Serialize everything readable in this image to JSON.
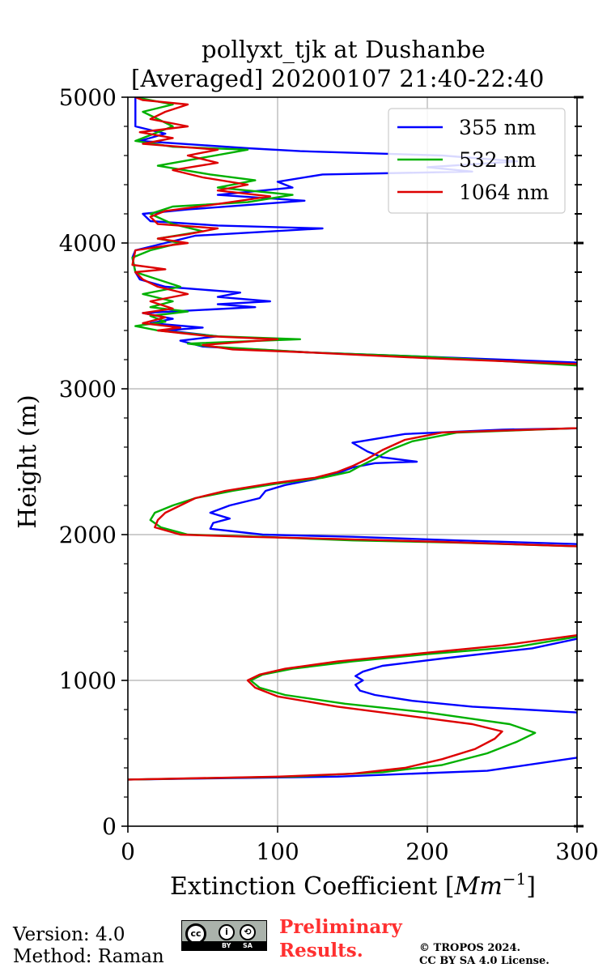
{
  "chart_data": {
    "type": "line",
    "title_line1": "pollyxt_tjk at Dushanbe",
    "title_line2": "[Averaged] 20200107 21:40-22:40",
    "xlabel_main": "Extinction Coefficient [",
    "xlabel_unit": "Mm",
    "xlabel_exp": "−1",
    "xlabel_close": "]",
    "ylabel": "Height (m)",
    "xlim": [
      0,
      300
    ],
    "ylim": [
      0,
      5000
    ],
    "xticks": [
      0,
      100,
      200,
      300
    ],
    "yticks": [
      0,
      1000,
      2000,
      3000,
      4000,
      5000
    ],
    "grid": true,
    "legend_position": "top-right",
    "series": [
      {
        "name": "355 nm",
        "color": "#0000ff",
        "points": [
          [
            0,
            320
          ],
          [
            140,
            340
          ],
          [
            240,
            380
          ],
          [
            300,
            470
          ],
          [
            305,
            600
          ],
          [
            300,
            780
          ],
          [
            230,
            820
          ],
          [
            190,
            860
          ],
          [
            165,
            900
          ],
          [
            155,
            930
          ],
          [
            152,
            970
          ],
          [
            157,
            1000
          ],
          [
            152,
            1030
          ],
          [
            157,
            1060
          ],
          [
            170,
            1100
          ],
          [
            210,
            1150
          ],
          [
            270,
            1220
          ],
          [
            300,
            1285
          ],
          [
            305,
            1400
          ],
          [
            305,
            1800
          ],
          [
            300,
            1935
          ],
          [
            220,
            1960
          ],
          [
            150,
            1985
          ],
          [
            90,
            2000
          ],
          [
            55,
            2040
          ],
          [
            57,
            2080
          ],
          [
            68,
            2110
          ],
          [
            55,
            2150
          ],
          [
            68,
            2200
          ],
          [
            88,
            2250
          ],
          [
            92,
            2300
          ],
          [
            105,
            2340
          ],
          [
            125,
            2380
          ],
          [
            140,
            2420
          ],
          [
            150,
            2460
          ],
          [
            165,
            2490
          ],
          [
            193,
            2500
          ],
          [
            170,
            2530
          ],
          [
            160,
            2570
          ],
          [
            150,
            2630
          ],
          [
            185,
            2690
          ],
          [
            250,
            2720
          ],
          [
            305,
            2730
          ],
          [
            305,
            3100
          ],
          [
            300,
            3180
          ],
          [
            200,
            3220
          ],
          [
            120,
            3250
          ],
          [
            50,
            3290
          ],
          [
            35,
            3330
          ],
          [
            60,
            3360
          ],
          [
            25,
            3400
          ],
          [
            50,
            3420
          ],
          [
            15,
            3450
          ],
          [
            30,
            3480
          ],
          [
            10,
            3520
          ],
          [
            85,
            3560
          ],
          [
            60,
            3580
          ],
          [
            95,
            3600
          ],
          [
            60,
            3630
          ],
          [
            75,
            3660
          ],
          [
            25,
            3700
          ],
          [
            8,
            3750
          ],
          [
            5,
            3800
          ],
          [
            3,
            3900
          ],
          [
            5,
            3950
          ],
          [
            25,
            4000
          ],
          [
            45,
            4050
          ],
          [
            130,
            4100
          ],
          [
            60,
            4120
          ],
          [
            15,
            4150
          ],
          [
            10,
            4200
          ],
          [
            40,
            4230
          ],
          [
            118,
            4290
          ],
          [
            60,
            4330
          ],
          [
            110,
            4380
          ],
          [
            100,
            4420
          ],
          [
            130,
            4470
          ],
          [
            230,
            4490
          ],
          [
            200,
            4520
          ],
          [
            260,
            4560
          ],
          [
            210,
            4600
          ],
          [
            115,
            4630
          ],
          [
            80,
            4650
          ],
          [
            8,
            4700
          ],
          [
            25,
            4750
          ],
          [
            5,
            4800
          ],
          [
            5,
            5000
          ]
        ]
      },
      {
        "name": "532 nm",
        "color": "#00b000",
        "points": [
          [
            0,
            320
          ],
          [
            110,
            340
          ],
          [
            170,
            370
          ],
          [
            210,
            420
          ],
          [
            240,
            500
          ],
          [
            260,
            580
          ],
          [
            272,
            640
          ],
          [
            255,
            700
          ],
          [
            200,
            780
          ],
          [
            145,
            840
          ],
          [
            105,
            900
          ],
          [
            88,
            950
          ],
          [
            82,
            1000
          ],
          [
            90,
            1040
          ],
          [
            110,
            1080
          ],
          [
            150,
            1130
          ],
          [
            200,
            1180
          ],
          [
            260,
            1230
          ],
          [
            300,
            1300
          ],
          [
            305,
            1400
          ],
          [
            305,
            1850
          ],
          [
            300,
            1920
          ],
          [
            220,
            1945
          ],
          [
            150,
            1960
          ],
          [
            90,
            1985
          ],
          [
            40,
            2000
          ],
          [
            22,
            2050
          ],
          [
            15,
            2100
          ],
          [
            18,
            2150
          ],
          [
            30,
            2200
          ],
          [
            45,
            2250
          ],
          [
            70,
            2300
          ],
          [
            100,
            2350
          ],
          [
            130,
            2390
          ],
          [
            148,
            2430
          ],
          [
            155,
            2470
          ],
          [
            165,
            2520
          ],
          [
            175,
            2580
          ],
          [
            190,
            2640
          ],
          [
            220,
            2700
          ],
          [
            300,
            2730
          ],
          [
            305,
            2800
          ],
          [
            305,
            3100
          ],
          [
            300,
            3160
          ],
          [
            200,
            3220
          ],
          [
            120,
            3250
          ],
          [
            55,
            3290
          ],
          [
            40,
            3310
          ],
          [
            115,
            3340
          ],
          [
            60,
            3360
          ],
          [
            20,
            3400
          ],
          [
            5,
            3430
          ],
          [
            25,
            3460
          ],
          [
            15,
            3500
          ],
          [
            40,
            3530
          ],
          [
            15,
            3560
          ],
          [
            30,
            3600
          ],
          [
            10,
            3650
          ],
          [
            35,
            3700
          ],
          [
            20,
            3750
          ],
          [
            5,
            3800
          ],
          [
            3,
            3900
          ],
          [
            15,
            3950
          ],
          [
            35,
            4000
          ],
          [
            20,
            4030
          ],
          [
            50,
            4080
          ],
          [
            30,
            4130
          ],
          [
            15,
            4200
          ],
          [
            30,
            4250
          ],
          [
            80,
            4280
          ],
          [
            110,
            4330
          ],
          [
            60,
            4380
          ],
          [
            85,
            4430
          ],
          [
            55,
            4470
          ],
          [
            20,
            4530
          ],
          [
            80,
            4640
          ],
          [
            30,
            4660
          ],
          [
            5,
            4700
          ],
          [
            30,
            4800
          ],
          [
            10,
            4900
          ],
          [
            30,
            4950
          ],
          [
            5,
            5000
          ]
        ]
      },
      {
        "name": "1064 nm",
        "color": "#dd0000",
        "points": [
          [
            0,
            320
          ],
          [
            100,
            340
          ],
          [
            150,
            360
          ],
          [
            185,
            400
          ],
          [
            210,
            460
          ],
          [
            232,
            530
          ],
          [
            245,
            600
          ],
          [
            250,
            650
          ],
          [
            230,
            700
          ],
          [
            185,
            760
          ],
          [
            140,
            820
          ],
          [
            100,
            890
          ],
          [
            85,
            950
          ],
          [
            80,
            1000
          ],
          [
            88,
            1040
          ],
          [
            105,
            1080
          ],
          [
            140,
            1130
          ],
          [
            190,
            1180
          ],
          [
            250,
            1240
          ],
          [
            300,
            1310
          ],
          [
            305,
            1400
          ],
          [
            305,
            1850
          ],
          [
            300,
            1920
          ],
          [
            210,
            1950
          ],
          [
            140,
            1970
          ],
          [
            80,
            1985
          ],
          [
            35,
            2000
          ],
          [
            18,
            2050
          ],
          [
            20,
            2100
          ],
          [
            25,
            2150
          ],
          [
            35,
            2200
          ],
          [
            45,
            2250
          ],
          [
            65,
            2300
          ],
          [
            95,
            2350
          ],
          [
            125,
            2390
          ],
          [
            140,
            2430
          ],
          [
            150,
            2470
          ],
          [
            160,
            2520
          ],
          [
            170,
            2580
          ],
          [
            185,
            2650
          ],
          [
            210,
            2700
          ],
          [
            300,
            2730
          ],
          [
            305,
            2800
          ],
          [
            305,
            3100
          ],
          [
            300,
            3170
          ],
          [
            200,
            3210
          ],
          [
            120,
            3250
          ],
          [
            70,
            3270
          ],
          [
            50,
            3300
          ],
          [
            100,
            3340
          ],
          [
            55,
            3360
          ],
          [
            20,
            3400
          ],
          [
            35,
            3420
          ],
          [
            10,
            3450
          ],
          [
            25,
            3490
          ],
          [
            10,
            3520
          ],
          [
            30,
            3550
          ],
          [
            15,
            3600
          ],
          [
            40,
            3650
          ],
          [
            20,
            3700
          ],
          [
            10,
            3750
          ],
          [
            5,
            3800
          ],
          [
            25,
            3820
          ],
          [
            3,
            3850
          ],
          [
            5,
            3950
          ],
          [
            25,
            3980
          ],
          [
            40,
            4000
          ],
          [
            20,
            4030
          ],
          [
            40,
            4060
          ],
          [
            60,
            4100
          ],
          [
            20,
            4130
          ],
          [
            15,
            4180
          ],
          [
            25,
            4220
          ],
          [
            55,
            4260
          ],
          [
            95,
            4320
          ],
          [
            60,
            4360
          ],
          [
            80,
            4400
          ],
          [
            50,
            4450
          ],
          [
            30,
            4500
          ],
          [
            60,
            4550
          ],
          [
            40,
            4600
          ],
          [
            60,
            4640
          ],
          [
            10,
            4680
          ],
          [
            30,
            4720
          ],
          [
            8,
            4760
          ],
          [
            40,
            4800
          ],
          [
            15,
            4850
          ],
          [
            25,
            4900
          ],
          [
            40,
            4950
          ],
          [
            10,
            4980
          ],
          [
            5,
            5000
          ]
        ]
      }
    ]
  },
  "footer": {
    "version_line": "Version: 4.0",
    "method_line": "Method: Raman",
    "license_badge": {
      "cc": "cc",
      "by": "BY",
      "sa": "SA",
      "i_glyph": "i",
      "sa_glyph": "⟲"
    },
    "preliminary_line1": "Preliminary",
    "preliminary_line2": "Results.",
    "copyright_line1": "© TROPOS 2024.",
    "copyright_line2": "CC BY SA 4.0 License."
  }
}
